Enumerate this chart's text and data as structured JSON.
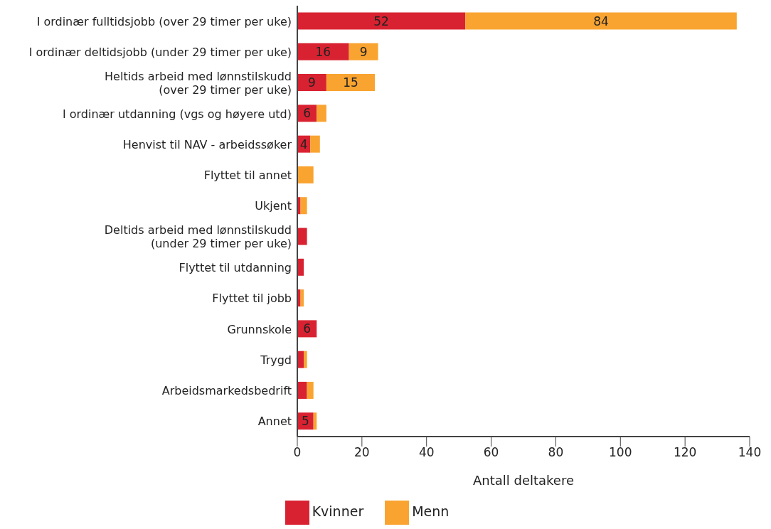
{
  "chart_data": {
    "type": "bar",
    "orientation": "horizontal",
    "stacked": true,
    "xlabel": "Antall deltakere",
    "categories": [
      "I ordinær fulltidsjobb (over 29 timer per uke)",
      "I ordinær deltidsjobb (under 29 timer per uke)",
      "Heltids arbeid med lønnstilskudd\n(over 29 timer per uke)",
      "I ordinær utdanning (vgs og høyere utd)",
      "Henvist til NAV - arbeidssøker",
      "Flyttet til annet",
      "Ukjent",
      "Deltids arbeid med lønnstilskudd\n(under 29 timer per uke)",
      "Flyttet til utdanning",
      "Flyttet til jobb",
      "Grunnskole",
      "Trygd",
      "Arbeidsmarkedsbedrift",
      "Annet"
    ],
    "series": [
      {
        "name": "Kvinner",
        "color": "#d92231",
        "values": [
          52,
          16,
          9,
          6,
          4,
          0,
          1,
          3,
          2,
          1,
          6,
          2,
          3,
          5
        ],
        "value_labels": [
          "52",
          "16",
          "9",
          "6",
          "4",
          null,
          null,
          null,
          null,
          null,
          "6",
          null,
          null,
          "5"
        ]
      },
      {
        "name": "Menn",
        "color": "#f9a431",
        "values": [
          84,
          9,
          15,
          3,
          3,
          5,
          2,
          0,
          0,
          1,
          0,
          1,
          2,
          1
        ],
        "value_labels": [
          "84",
          "9",
          "15",
          null,
          null,
          null,
          null,
          null,
          null,
          null,
          null,
          null,
          null,
          null
        ]
      }
    ],
    "xlim": [
      0,
      140
    ],
    "xticks": [
      0,
      20,
      40,
      60,
      80,
      100,
      120,
      140
    ],
    "legend": "bottom"
  }
}
